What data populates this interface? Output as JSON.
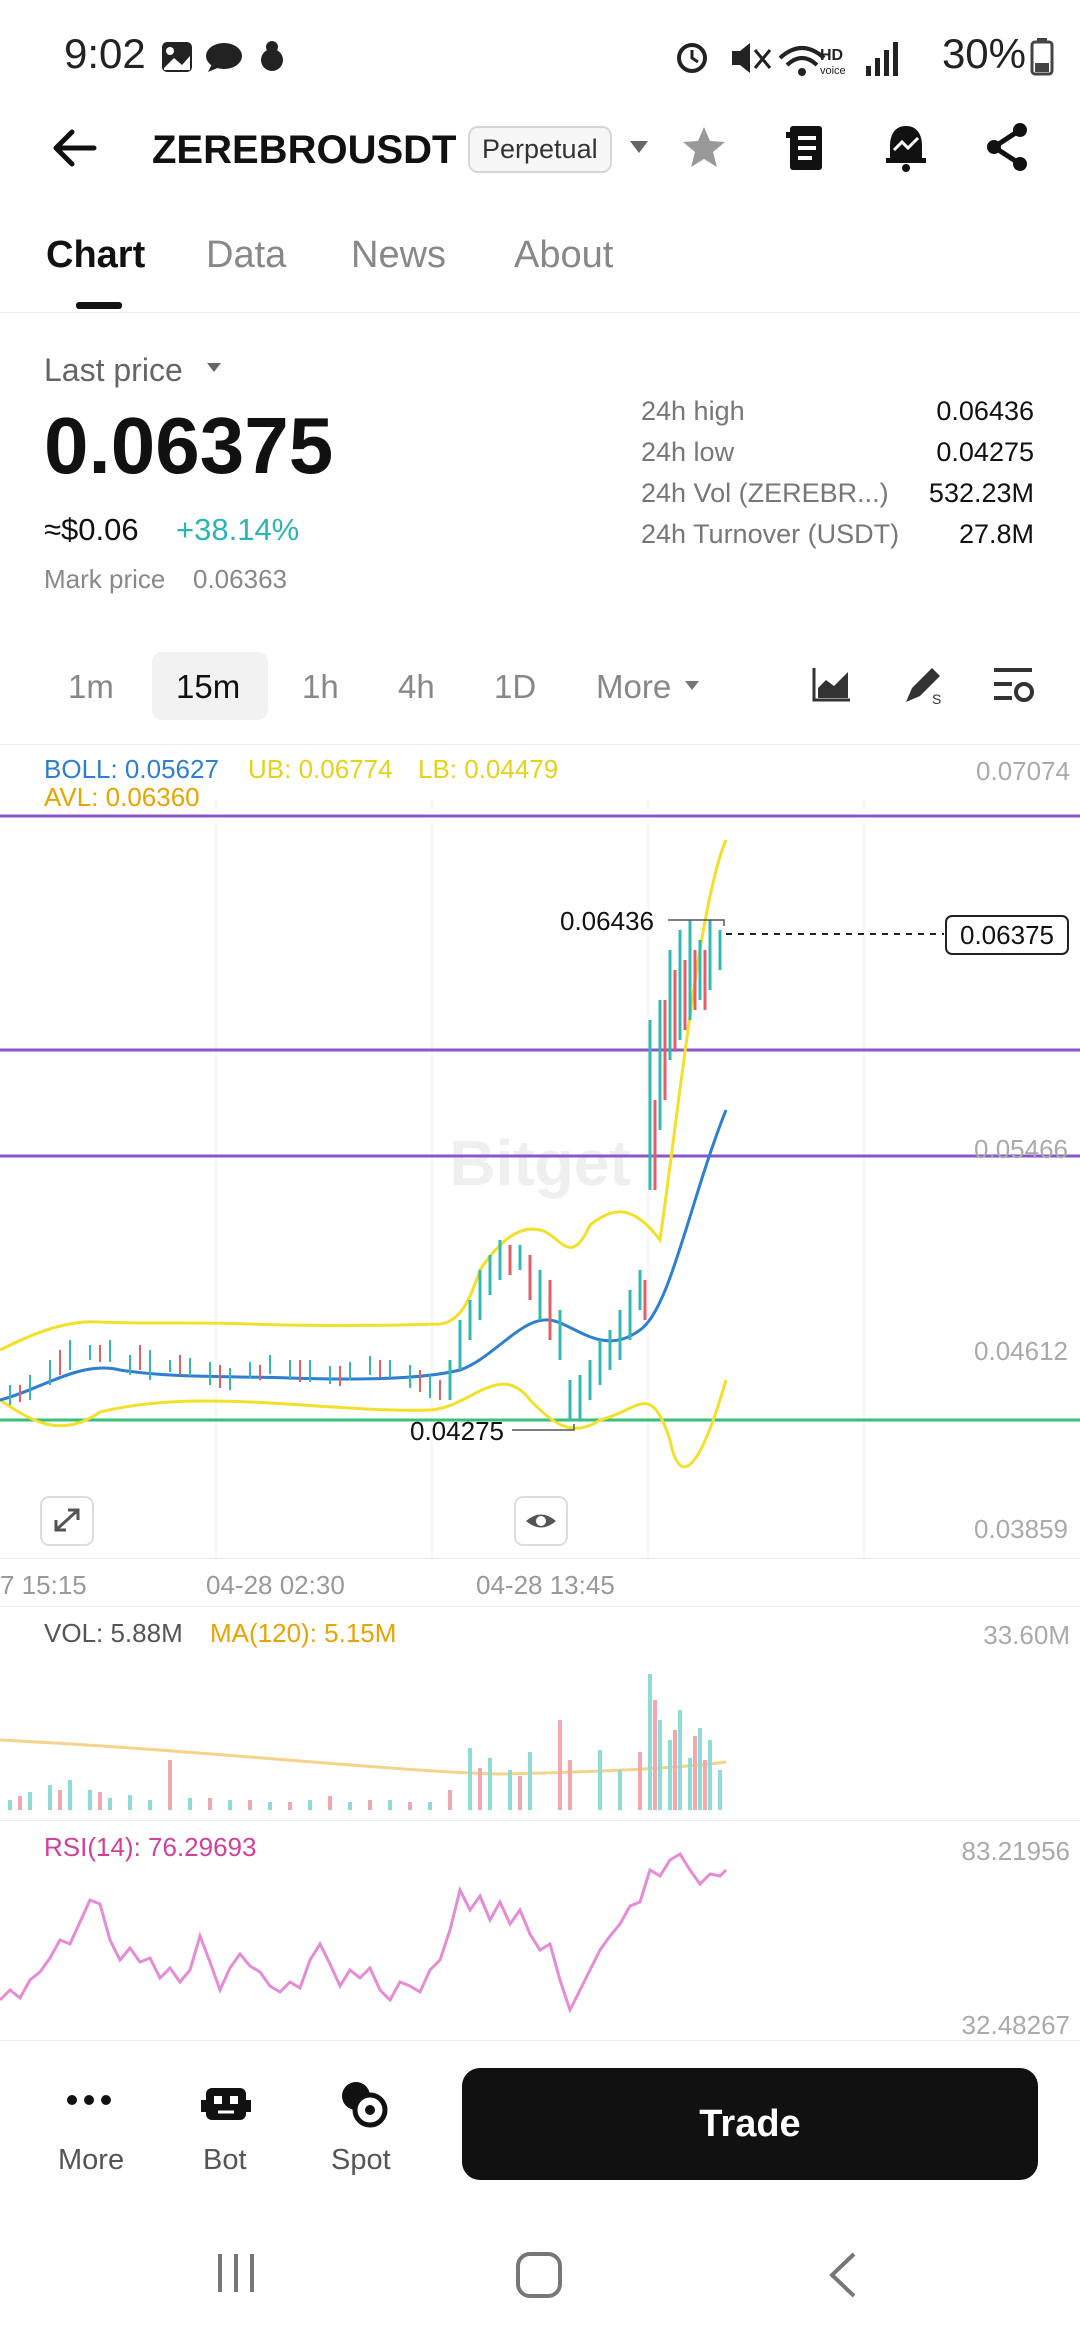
{
  "status_bar": {
    "time": "9:02",
    "battery": "30%"
  },
  "header": {
    "title": "ZEREBROUSDT",
    "badge": "Perpetual"
  },
  "tabs": [
    "Chart",
    "Data",
    "News",
    "About"
  ],
  "price_info": {
    "last_price_label": "Last price",
    "last_price": "0.06375",
    "usd_value": "≈$0.06",
    "change": "+38.14%",
    "mark_price_label": "Mark price",
    "mark_price": "0.06363",
    "change_color": "#2db5b0"
  },
  "stats": [
    {
      "label": "24h high",
      "value": "0.06436"
    },
    {
      "label": "24h low",
      "value": "0.04275"
    },
    {
      "label": "24h Vol (ZEREBR...)",
      "value": "532.23M"
    },
    {
      "label": "24h Turnover (USDT)",
      "value": "27.8M"
    }
  ],
  "intervals": [
    "1m",
    "15m",
    "1h",
    "4h",
    "1D",
    "More"
  ],
  "chart": {
    "boll": "BOLL: 0.05627",
    "ub": "UB: 0.06774",
    "lb": "LB: 0.04479",
    "avl": "AVL: 0.06360",
    "axis_labels": [
      "0.07074",
      "0.05466",
      "0.04612",
      "0.03859"
    ],
    "high_label": "0.06436",
    "low_label": "0.04275",
    "current_tag": "0.06375",
    "watermark": "Bitget",
    "time_labels": [
      "7 15:15",
      "04-28 02:30",
      "04-28 13:45"
    ]
  },
  "volume": {
    "vol": "VOL: 5.88M",
    "ma": "MA(120): 5.15M",
    "axis": "33.60M"
  },
  "rsi": {
    "label": "RSI(14): 76.29693",
    "axis_top": "83.21956",
    "axis_bottom": "32.48267"
  },
  "bottom_bar": {
    "more": "More",
    "bot": "Bot",
    "spot": "Spot",
    "trade": "Trade"
  },
  "colors": {
    "boll": "#2f7fd0",
    "band": "#f2e02a",
    "avl": "#e8a400",
    "purple": "#8a56c9",
    "green": "#36c07a",
    "up": "#33b9b1",
    "down": "#e25f6a",
    "rsi": "#e07ccf"
  }
}
